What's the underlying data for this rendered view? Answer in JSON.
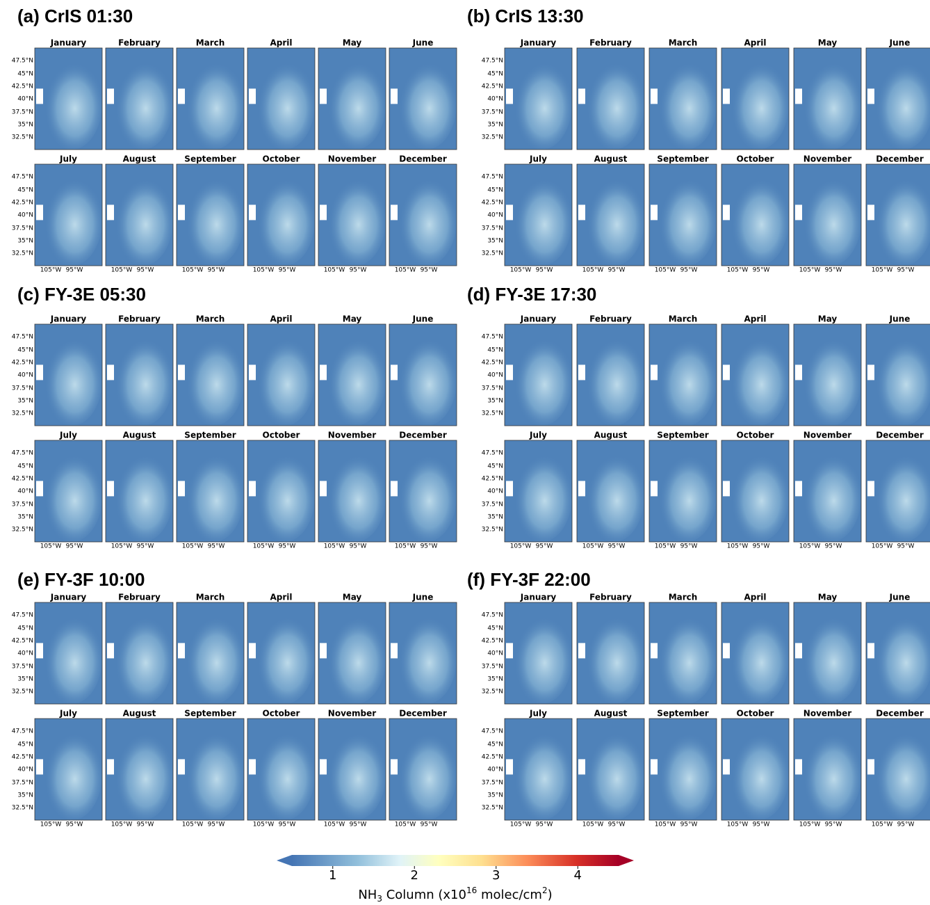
{
  "panels": [
    {
      "title": "(a) CrIS 01:30"
    },
    {
      "title": "(b) CrIS 13:30"
    },
    {
      "title": "(c) FY-3E 05:30"
    },
    {
      "title": "(d) FY-3E 17:30"
    },
    {
      "title": "(e) FY-3F 10:00"
    },
    {
      "title": "(f) FY-3F 22:00"
    }
  ],
  "months": [
    "January",
    "February",
    "March",
    "April",
    "May",
    "June",
    "July",
    "August",
    "September",
    "October",
    "November",
    "December"
  ],
  "lat_labels": [
    "47.5°N",
    "45°N",
    "42.5°N",
    "40°N",
    "37.5°N",
    "35°N",
    "32.5°N"
  ],
  "lon_labels": [
    "105°W",
    "95°W"
  ],
  "colorbar": {
    "clim": [
      0.5,
      4.5
    ],
    "ticks": [
      1,
      2,
      3,
      4
    ],
    "label_parts": [
      "NH",
      "3",
      " Column (x10",
      "16",
      " molec/cm",
      "2",
      ")"
    ]
  }
}
